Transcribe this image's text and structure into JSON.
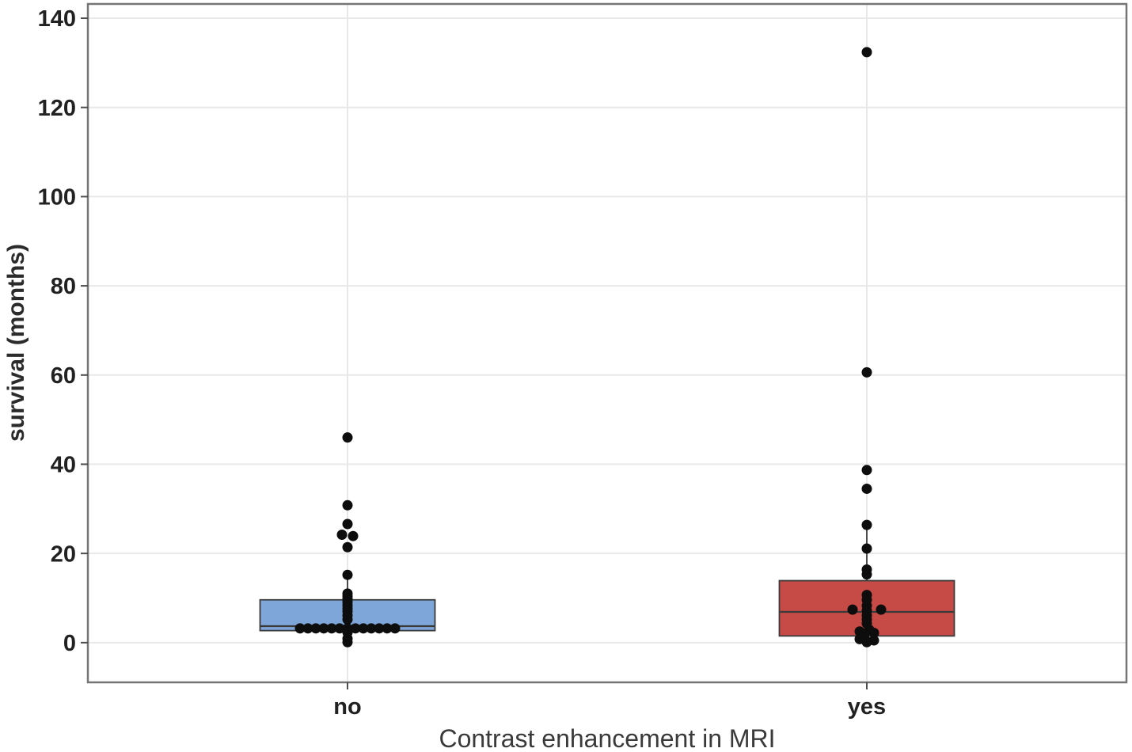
{
  "chart_data": {
    "type": "boxplot",
    "title": "",
    "xlabel": "Contrast enhancement in MRI",
    "ylabel": "survival (months)",
    "ylim": [
      -8.9,
      143.2
    ],
    "yticks": [
      0,
      20,
      40,
      60,
      80,
      100,
      120,
      140
    ],
    "grid": "horizontal major gridlines + vertical gridline at each category center",
    "legend": "none",
    "categories": [
      "no",
      "yes"
    ],
    "colors": {
      "box_no_fill": "#7ea6d8",
      "box_yes_fill": "#c64a45",
      "box_stroke": "#3a3a3a",
      "point_fill": "#0d0d0d",
      "gridline": "#e8e8e8",
      "plot_border": "#757575",
      "tick_mark": "#4d4d4d",
      "background": "#ffffff"
    },
    "groups": [
      {
        "label": "no",
        "fill_key": "box_no_fill",
        "q1": 2.7,
        "median": 3.7,
        "q3": 9.6,
        "whisker_low": 0.1,
        "whisker_high": 15.2,
        "points": [
          {
            "v": 46.0,
            "dx": 0
          },
          {
            "v": 30.8,
            "dx": 0
          },
          {
            "v": 26.6,
            "dx": 0
          },
          {
            "v": 24.2,
            "dx": -7
          },
          {
            "v": 23.9,
            "dx": 7
          },
          {
            "v": 21.4,
            "dx": 0
          },
          {
            "v": 15.2,
            "dx": 0
          },
          {
            "v": 11.0,
            "dx": 0
          },
          {
            "v": 10.4,
            "dx": 0
          },
          {
            "v": 9.8,
            "dx": 0
          },
          {
            "v": 9.1,
            "dx": 0
          },
          {
            "v": 8.4,
            "dx": 0
          },
          {
            "v": 7.7,
            "dx": 0
          },
          {
            "v": 7.0,
            "dx": 0
          },
          {
            "v": 6.1,
            "dx": 0
          },
          {
            "v": 5.2,
            "dx": 0
          },
          {
            "v": 3.2,
            "dx": -60
          },
          {
            "v": 3.2,
            "dx": -50
          },
          {
            "v": 3.2,
            "dx": -40
          },
          {
            "v": 3.2,
            "dx": -30
          },
          {
            "v": 3.2,
            "dx": -20
          },
          {
            "v": 3.2,
            "dx": -10
          },
          {
            "v": 3.2,
            "dx": 0
          },
          {
            "v": 3.2,
            "dx": 10
          },
          {
            "v": 3.2,
            "dx": 20
          },
          {
            "v": 3.2,
            "dx": 30
          },
          {
            "v": 3.2,
            "dx": 40
          },
          {
            "v": 3.2,
            "dx": 50
          },
          {
            "v": 3.2,
            "dx": 60
          },
          {
            "v": 2.3,
            "dx": 0
          },
          {
            "v": 0.9,
            "dx": 0
          },
          {
            "v": 0.1,
            "dx": 0
          }
        ]
      },
      {
        "label": "yes",
        "fill_key": "box_yes_fill",
        "q1": 1.5,
        "median": 6.9,
        "q3": 13.9,
        "whisker_low": 0.1,
        "whisker_high": 26.4,
        "points": [
          {
            "v": 132.4,
            "dx": 0
          },
          {
            "v": 60.6,
            "dx": 0
          },
          {
            "v": 38.7,
            "dx": 0
          },
          {
            "v": 34.5,
            "dx": 0
          },
          {
            "v": 26.4,
            "dx": 0
          },
          {
            "v": 21.1,
            "dx": 0
          },
          {
            "v": 16.4,
            "dx": 0
          },
          {
            "v": 15.3,
            "dx": 0
          },
          {
            "v": 10.7,
            "dx": 0
          },
          {
            "v": 9.6,
            "dx": 0
          },
          {
            "v": 8.3,
            "dx": 0
          },
          {
            "v": 7.4,
            "dx": -18
          },
          {
            "v": 7.4,
            "dx": 18
          },
          {
            "v": 7.2,
            "dx": 0
          },
          {
            "v": 6.1,
            "dx": 0
          },
          {
            "v": 5.2,
            "dx": 0
          },
          {
            "v": 4.3,
            "dx": 0
          },
          {
            "v": 2.9,
            "dx": 3
          },
          {
            "v": 2.5,
            "dx": -9
          },
          {
            "v": 2.2,
            "dx": 9
          },
          {
            "v": 1.2,
            "dx": -3
          },
          {
            "v": 0.8,
            "dx": -9
          },
          {
            "v": 0.5,
            "dx": 9
          },
          {
            "v": 0.1,
            "dx": 0
          }
        ]
      }
    ]
  }
}
